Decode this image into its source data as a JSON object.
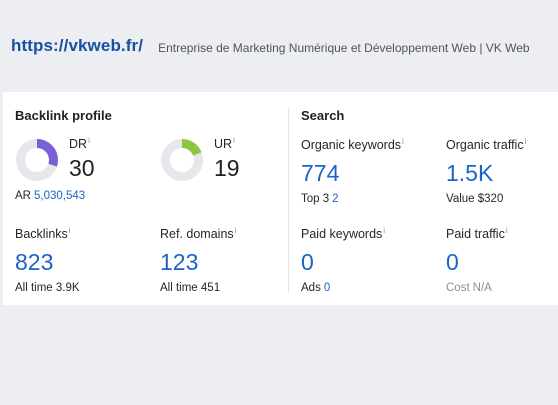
{
  "header": {
    "url": "https://vkweb.fr/",
    "description": "Entreprise de Marketing Numérique et Développement Web | VK Web"
  },
  "backlink_profile": {
    "title": "Backlink profile",
    "dr": {
      "label": "DR",
      "value": "30",
      "fraction": 0.3,
      "color": "#7a5fd6"
    },
    "ur": {
      "label": "UR",
      "value": "19",
      "fraction": 0.19,
      "color": "#8cc63f"
    },
    "ar": {
      "label": "AR",
      "value": "5,030,543"
    },
    "backlinks": {
      "label": "Backlinks",
      "value": "823",
      "sub_label": "All time",
      "sub_value": "3.9K"
    },
    "ref_domains": {
      "label": "Ref. domains",
      "value": "123",
      "sub_label": "All time",
      "sub_value": "451"
    }
  },
  "search": {
    "title": "Search",
    "organic_keywords": {
      "label": "Organic keywords",
      "value": "774",
      "sub_label": "Top 3",
      "sub_value": "2"
    },
    "organic_traffic": {
      "label": "Organic traffic",
      "value": "1.5K",
      "sub_label": "Value",
      "sub_value": "$320"
    },
    "paid_keywords": {
      "label": "Paid keywords",
      "value": "0",
      "sub_label": "Ads",
      "sub_value": "0"
    },
    "paid_traffic": {
      "label": "Paid traffic",
      "value": "0",
      "sub_label": "Cost",
      "sub_value": "N/A"
    }
  },
  "icons": {
    "info": "info-icon",
    "info_glyph": "i"
  },
  "colors": {
    "link_blue": "#1a63c9",
    "url_blue": "#1a4fa3",
    "donut_track": "#e6e7eb"
  }
}
